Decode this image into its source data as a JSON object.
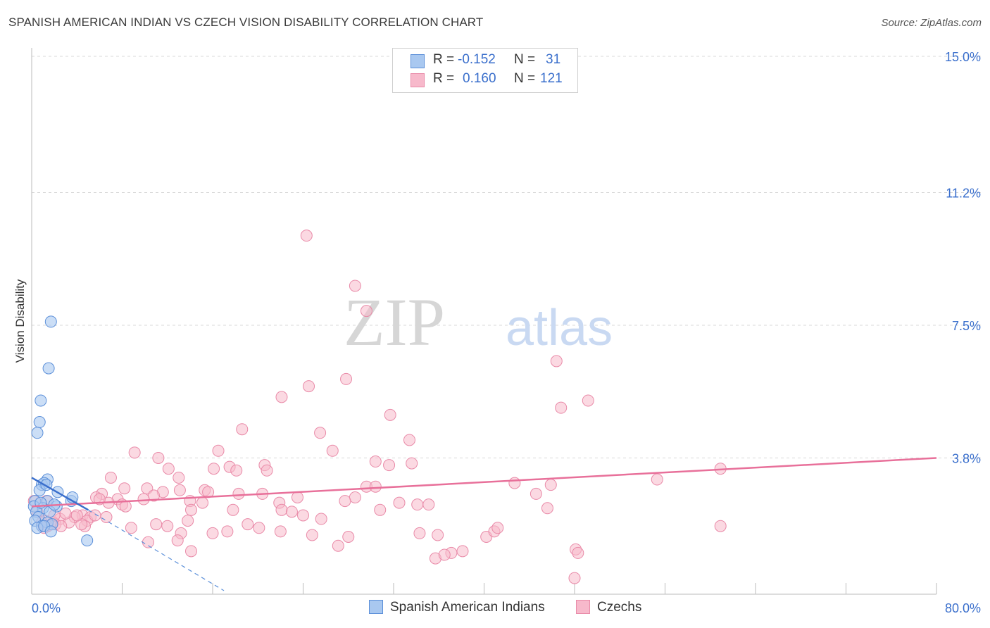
{
  "title": "SPANISH AMERICAN INDIAN VS CZECH VISION DISABILITY CORRELATION CHART",
  "source": "Source: ZipAtlas.com",
  "legend": {
    "series1": {
      "r_label": "R =",
      "r_value": "-0.152",
      "n_label": "N =",
      "n_value": "31"
    },
    "series2": {
      "r_label": "R =",
      "r_value": "0.160",
      "n_label": "N =",
      "n_value": "121"
    }
  },
  "bottom_legend": [
    "Spanish American Indians",
    "Czechs"
  ],
  "watermark": {
    "zip": "ZIP",
    "atlas": "atlas"
  },
  "colors": {
    "blue_fill": "#a9c8f0",
    "blue_stroke": "#5b8fd9",
    "blue_line": "#3a6fcc",
    "pink_fill": "#f7b9cb",
    "pink_stroke": "#e98aa8",
    "pink_line": "#e8709a",
    "grid": "#d8d8d8",
    "tick_text": "#3a6fcc"
  },
  "chart_data": {
    "type": "scatter",
    "title": "SPANISH AMERICAN INDIAN VS CZECH VISION DISABILITY CORRELATION CHART",
    "xlabel": "",
    "ylabel": "Vision Disability",
    "xlim": [
      0,
      80
    ],
    "ylim": [
      0,
      15
    ],
    "x_tick_labels": [
      "0.0%",
      "80.0%"
    ],
    "y_ticks": [
      3.8,
      7.5,
      11.2,
      15.0
    ],
    "y_tick_labels": [
      "3.8%",
      "7.5%",
      "11.2%",
      "15.0%"
    ],
    "series": [
      {
        "name": "Spanish American Indians",
        "color": "#a9c8f0",
        "r": -0.152,
        "n": 31,
        "trend": {
          "x0": 0,
          "y0": 3.25,
          "x1": 5,
          "y1": 2.35,
          "dashed_to_x": 17,
          "dashed_to_y": 0.1
        },
        "points": [
          [
            1.7,
            7.6
          ],
          [
            1.5,
            6.3
          ],
          [
            0.8,
            5.4
          ],
          [
            0.7,
            4.8
          ],
          [
            0.5,
            4.5
          ],
          [
            1.4,
            3.2
          ],
          [
            0.9,
            3.05
          ],
          [
            1.1,
            3.1
          ],
          [
            0.7,
            2.9
          ],
          [
            2.3,
            2.85
          ],
          [
            0.3,
            2.6
          ],
          [
            1.4,
            2.6
          ],
          [
            3.5,
            2.6
          ],
          [
            2.2,
            2.45
          ],
          [
            0.2,
            2.45
          ],
          [
            1.0,
            2.4
          ],
          [
            0.4,
            2.3
          ],
          [
            1.6,
            2.3
          ],
          [
            0.6,
            2.15
          ],
          [
            0.3,
            2.05
          ],
          [
            1.4,
            2.0
          ],
          [
            0.9,
            1.9
          ],
          [
            1.8,
            1.95
          ],
          [
            0.5,
            1.85
          ],
          [
            1.1,
            1.9
          ],
          [
            1.7,
            1.75
          ],
          [
            3.6,
            2.7
          ],
          [
            4.9,
            1.5
          ],
          [
            0.8,
            2.55
          ],
          [
            2.0,
            2.5
          ],
          [
            1.3,
            3.05
          ]
        ]
      },
      {
        "name": "Czechs",
        "color": "#f7b9cb",
        "r": 0.16,
        "n": 121,
        "trend": {
          "x0": 0,
          "y0": 2.45,
          "x1": 80,
          "y1": 3.8
        },
        "points": [
          [
            24.3,
            10.0
          ],
          [
            28.6,
            8.6
          ],
          [
            29.6,
            7.9
          ],
          [
            46.4,
            6.5
          ],
          [
            27.8,
            6.0
          ],
          [
            24.5,
            5.8
          ],
          [
            22.1,
            5.5
          ],
          [
            49.2,
            5.4
          ],
          [
            46.8,
            5.2
          ],
          [
            31.7,
            5.0
          ],
          [
            18.6,
            4.6
          ],
          [
            25.5,
            4.5
          ],
          [
            33.4,
            4.3
          ],
          [
            26.6,
            4.0
          ],
          [
            9.1,
            3.95
          ],
          [
            16.5,
            4.0
          ],
          [
            11.2,
            3.8
          ],
          [
            30.4,
            3.7
          ],
          [
            33.6,
            3.65
          ],
          [
            31.6,
            3.6
          ],
          [
            20.6,
            3.6
          ],
          [
            17.5,
            3.55
          ],
          [
            12.1,
            3.5
          ],
          [
            16.1,
            3.5
          ],
          [
            20.8,
            3.45
          ],
          [
            18.1,
            3.45
          ],
          [
            60.9,
            3.5
          ],
          [
            7.0,
            3.25
          ],
          [
            13.0,
            3.25
          ],
          [
            55.3,
            3.2
          ],
          [
            42.7,
            3.1
          ],
          [
            45.9,
            3.05
          ],
          [
            29.6,
            3.0
          ],
          [
            30.4,
            3.0
          ],
          [
            8.2,
            2.95
          ],
          [
            10.2,
            2.95
          ],
          [
            15.3,
            2.9
          ],
          [
            11.6,
            2.85
          ],
          [
            15.6,
            2.85
          ],
          [
            6.2,
            2.8
          ],
          [
            18.3,
            2.8
          ],
          [
            20.4,
            2.8
          ],
          [
            10.8,
            2.75
          ],
          [
            44.6,
            2.8
          ],
          [
            5.7,
            2.7
          ],
          [
            7.6,
            2.65
          ],
          [
            9.9,
            2.65
          ],
          [
            23.5,
            2.7
          ],
          [
            28.6,
            2.7
          ],
          [
            6.8,
            2.55
          ],
          [
            14.0,
            2.6
          ],
          [
            15.1,
            2.55
          ],
          [
            21.9,
            2.55
          ],
          [
            8.0,
            2.5
          ],
          [
            8.3,
            2.45
          ],
          [
            27.7,
            2.6
          ],
          [
            32.5,
            2.55
          ],
          [
            34.1,
            2.5
          ],
          [
            14.1,
            2.35
          ],
          [
            17.8,
            2.35
          ],
          [
            22.1,
            2.35
          ],
          [
            23.0,
            2.3
          ],
          [
            30.8,
            2.35
          ],
          [
            45.6,
            2.4
          ],
          [
            4.5,
            2.2
          ],
          [
            6.6,
            2.15
          ],
          [
            5.2,
            2.15
          ],
          [
            3.8,
            2.15
          ],
          [
            2.5,
            2.1
          ],
          [
            4.9,
            2.05
          ],
          [
            3.3,
            2.0
          ],
          [
            1.2,
            2.05
          ],
          [
            1.9,
            2.0
          ],
          [
            2.1,
            1.95
          ],
          [
            0.9,
            2.0
          ],
          [
            1.4,
            1.9
          ],
          [
            2.6,
            1.9
          ],
          [
            4.7,
            1.9
          ],
          [
            4.4,
            1.95
          ],
          [
            13.8,
            2.05
          ],
          [
            25.6,
            2.1
          ],
          [
            11.0,
            1.95
          ],
          [
            8.8,
            1.85
          ],
          [
            12.0,
            1.9
          ],
          [
            19.1,
            1.95
          ],
          [
            20.1,
            1.85
          ],
          [
            22.0,
            1.75
          ],
          [
            16.0,
            1.7
          ],
          [
            17.3,
            1.75
          ],
          [
            24.8,
            1.65
          ],
          [
            28.0,
            1.6
          ],
          [
            34.3,
            1.7
          ],
          [
            35.9,
            1.65
          ],
          [
            40.2,
            1.6
          ],
          [
            40.9,
            1.75
          ],
          [
            41.2,
            1.85
          ],
          [
            13.2,
            1.7
          ],
          [
            10.3,
            1.45
          ],
          [
            12.9,
            1.5
          ],
          [
            27.1,
            1.35
          ],
          [
            14.1,
            1.2
          ],
          [
            38.1,
            1.2
          ],
          [
            37.1,
            1.15
          ],
          [
            35.7,
            1.0
          ],
          [
            36.5,
            1.1
          ],
          [
            48.1,
            1.25
          ],
          [
            48.3,
            1.15
          ],
          [
            60.9,
            1.9
          ],
          [
            48.0,
            0.45
          ],
          [
            2.0,
            2.2
          ],
          [
            3.0,
            2.25
          ],
          [
            4.0,
            2.2
          ],
          [
            5.6,
            2.2
          ],
          [
            1.1,
            1.85
          ],
          [
            0.5,
            2.3
          ],
          [
            0.2,
            2.6
          ],
          [
            1.3,
            2.6
          ],
          [
            6.0,
            2.65
          ],
          [
            13.1,
            2.9
          ],
          [
            24.0,
            2.2
          ],
          [
            35.1,
            2.5
          ]
        ]
      }
    ]
  }
}
